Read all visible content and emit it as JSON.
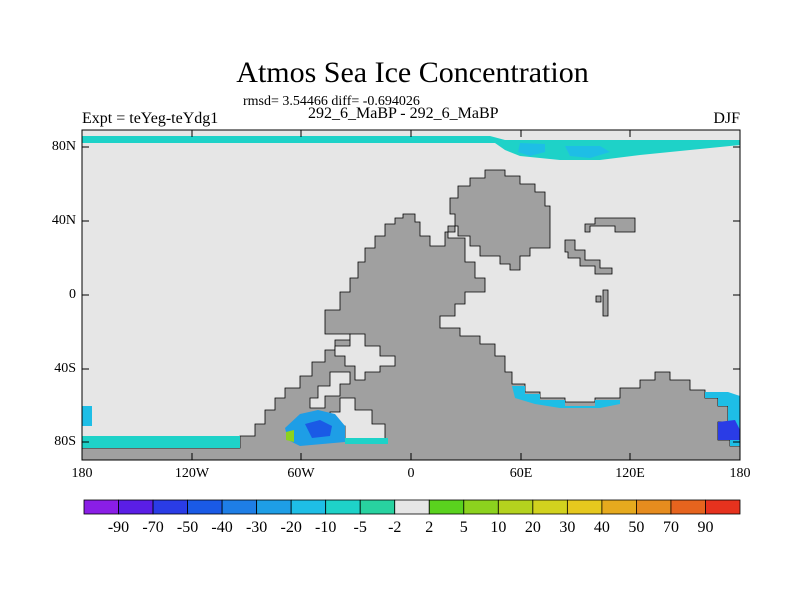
{
  "title": "Atmos Sea Ice Concentration",
  "stats": "rmsd= 3.54466 diff= -0.694026",
  "experiment": "Expt = teYeg-teYdg1",
  "period": "292_6_MaBP - 292_6_MaBP",
  "season": "DJF",
  "axes": {
    "y_ticks": [
      "80N",
      "40N",
      "0",
      "40S",
      "80S"
    ],
    "x_ticks": [
      "180",
      "120W",
      "60W",
      "0",
      "60E",
      "120E",
      "180"
    ]
  },
  "colors": {
    "land": "#a0a0a0",
    "ocean_no_change": "#e6e6e6",
    "grid_frame": "#000000"
  },
  "colorbar": {
    "labels": [
      "-90",
      "-70",
      "-50",
      "-40",
      "-30",
      "-20",
      "-10",
      "-5",
      "-2",
      "2",
      "5",
      "10",
      "20",
      "30",
      "40",
      "50",
      "70",
      "90"
    ],
    "colors": [
      "#8a1ee6",
      "#5a1ee6",
      "#2a3ce6",
      "#1a5ae6",
      "#1e7ee6",
      "#1e9ee6",
      "#1ebee6",
      "#1ed2c8",
      "#28d2a0",
      "#e6e6e6",
      "#5ad21e",
      "#8cd21e",
      "#b4d21e",
      "#d2d21e",
      "#e6c81e",
      "#e6aa1e",
      "#e68c1e",
      "#e6641e",
      "#e6321e"
    ]
  }
}
